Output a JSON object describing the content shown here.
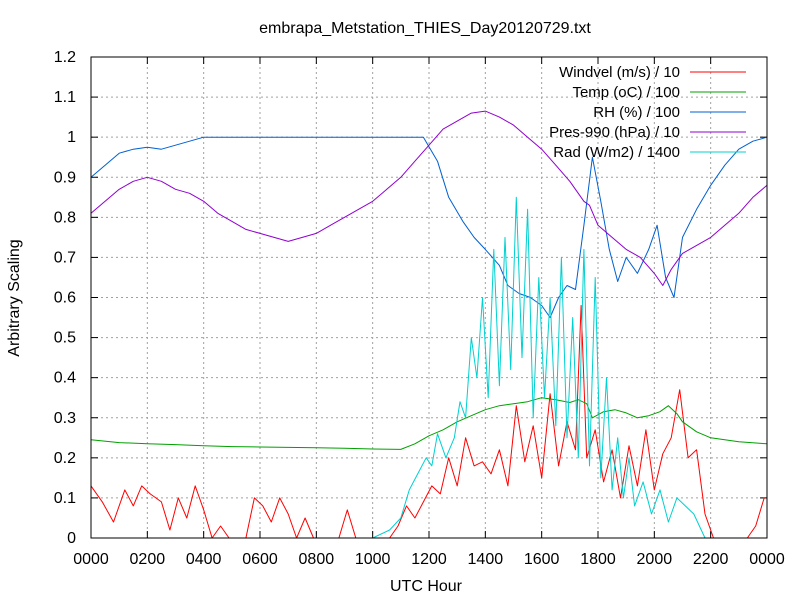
{
  "chart_data": {
    "type": "line",
    "title": "embrapa_Metstation_THIES_Day20120729.txt",
    "xlabel": "UTC Hour",
    "ylabel": "Arbitrary Scaling",
    "xlim": [
      0,
      24
    ],
    "ylim": [
      0,
      1.2
    ],
    "x_ticks": [
      {
        "value": 0,
        "label": "0000"
      },
      {
        "value": 2,
        "label": "0200"
      },
      {
        "value": 4,
        "label": "0400"
      },
      {
        "value": 6,
        "label": "0600"
      },
      {
        "value": 8,
        "label": "0800"
      },
      {
        "value": 10,
        "label": "1000"
      },
      {
        "value": 12,
        "label": "1200"
      },
      {
        "value": 14,
        "label": "1400"
      },
      {
        "value": 16,
        "label": "1600"
      },
      {
        "value": 18,
        "label": "1800"
      },
      {
        "value": 20,
        "label": "2000"
      },
      {
        "value": 22,
        "label": "2200"
      },
      {
        "value": 24,
        "label": "0000"
      }
    ],
    "y_ticks": [
      {
        "value": 0,
        "label": "0"
      },
      {
        "value": 0.1,
        "label": "0.1"
      },
      {
        "value": 0.2,
        "label": "0.2"
      },
      {
        "value": 0.3,
        "label": "0.3"
      },
      {
        "value": 0.4,
        "label": "0.4"
      },
      {
        "value": 0.5,
        "label": "0.5"
      },
      {
        "value": 0.6,
        "label": "0.6"
      },
      {
        "value": 0.7,
        "label": "0.7"
      },
      {
        "value": 0.8,
        "label": "0.8"
      },
      {
        "value": 0.9,
        "label": "0.9"
      },
      {
        "value": 1,
        "label": "1"
      },
      {
        "value": 1.1,
        "label": "1.1"
      },
      {
        "value": 1.2,
        "label": "1.2"
      }
    ],
    "grid": true,
    "legend_position": "top-right",
    "series": [
      {
        "name": "Windvel (m/s) / 10",
        "color": "#ff0000",
        "x": [
          0,
          0.4,
          0.8,
          1.2,
          1.5,
          1.8,
          2.1,
          2.5,
          2.8,
          3.1,
          3.4,
          3.7,
          4.0,
          4.3,
          4.6,
          4.9,
          5.2,
          5.5,
          5.8,
          6.1,
          6.4,
          6.7,
          7.0,
          7.3,
          7.6,
          7.9,
          8.2,
          8.5,
          8.8,
          9.1,
          9.4,
          9.7,
          10.0,
          10.3,
          10.6,
          10.9,
          11.2,
          11.5,
          11.8,
          12.1,
          12.4,
          12.7,
          13.0,
          13.3,
          13.6,
          13.9,
          14.2,
          14.5,
          14.8,
          15.1,
          15.4,
          15.7,
          16.0,
          16.3,
          16.6,
          16.9,
          17.2,
          17.4,
          17.6,
          17.9,
          18.2,
          18.5,
          18.8,
          19.1,
          19.4,
          19.7,
          20.0,
          20.3,
          20.6,
          20.9,
          21.2,
          21.5,
          21.8,
          22.1,
          22.4,
          22.7,
          23.0,
          23.3,
          23.6,
          23.9
        ],
        "y": [
          0.13,
          0.09,
          0.04,
          0.12,
          0.08,
          0.13,
          0.11,
          0.09,
          0.02,
          0.1,
          0.05,
          0.13,
          0.07,
          0.0,
          0.03,
          0.0,
          0.0,
          0.0,
          0.1,
          0.08,
          0.04,
          0.1,
          0.06,
          0.0,
          0.05,
          0.0,
          0.0,
          0.0,
          0.0,
          0.07,
          0.0,
          0.0,
          0.0,
          0.0,
          0.0,
          0.03,
          0.08,
          0.05,
          0.09,
          0.13,
          0.11,
          0.2,
          0.13,
          0.25,
          0.18,
          0.19,
          0.16,
          0.22,
          0.13,
          0.33,
          0.19,
          0.28,
          0.15,
          0.36,
          0.18,
          0.29,
          0.22,
          0.58,
          0.2,
          0.27,
          0.14,
          0.22,
          0.1,
          0.23,
          0.13,
          0.27,
          0.12,
          0.21,
          0.25,
          0.37,
          0.2,
          0.22,
          0.06,
          0.0,
          0.0,
          0.0,
          0.0,
          0.0,
          0.03,
          0.1
        ]
      },
      {
        "name": "Temp (oC) / 100",
        "color": "#00a000",
        "x": [
          0,
          1,
          2,
          3,
          4,
          5,
          6,
          7,
          8,
          9,
          10,
          11,
          11.5,
          12,
          12.5,
          13,
          13.5,
          14,
          14.5,
          15,
          15.5,
          16,
          16.5,
          17,
          17.3,
          17.6,
          17.8,
          18.2,
          18.6,
          19,
          19.4,
          19.8,
          20.2,
          20.5,
          20.8,
          21,
          21.5,
          22,
          23,
          24
        ],
        "y": [
          0.245,
          0.238,
          0.235,
          0.233,
          0.23,
          0.228,
          0.227,
          0.226,
          0.225,
          0.224,
          0.222,
          0.221,
          0.235,
          0.255,
          0.27,
          0.29,
          0.305,
          0.32,
          0.33,
          0.335,
          0.34,
          0.35,
          0.345,
          0.338,
          0.345,
          0.335,
          0.3,
          0.315,
          0.32,
          0.312,
          0.3,
          0.305,
          0.315,
          0.33,
          0.31,
          0.29,
          0.265,
          0.25,
          0.24,
          0.235
        ]
      },
      {
        "name": "RH (%) / 100",
        "color": "#0060d0",
        "x": [
          0,
          0.5,
          1,
          1.5,
          2,
          2.5,
          3,
          3.5,
          4,
          5,
          6,
          7,
          8,
          9,
          10,
          11,
          11.8,
          12.3,
          12.7,
          13.2,
          13.6,
          14,
          14.5,
          14.8,
          15.2,
          15.6,
          16,
          16.3,
          16.6,
          16.9,
          17.2,
          17.5,
          17.8,
          18.1,
          18.4,
          18.7,
          19,
          19.4,
          19.8,
          20.1,
          20.4,
          20.7,
          21,
          21.5,
          22,
          22.5,
          23,
          23.5,
          24
        ],
        "y": [
          0.9,
          0.93,
          0.96,
          0.97,
          0.975,
          0.97,
          0.98,
          0.99,
          1.0,
          1.0,
          1.0,
          1.0,
          1.0,
          1.0,
          1.0,
          1.0,
          1.0,
          0.94,
          0.85,
          0.79,
          0.75,
          0.72,
          0.68,
          0.63,
          0.61,
          0.6,
          0.58,
          0.55,
          0.6,
          0.63,
          0.62,
          0.78,
          0.95,
          0.84,
          0.72,
          0.64,
          0.7,
          0.66,
          0.72,
          0.78,
          0.65,
          0.6,
          0.75,
          0.82,
          0.88,
          0.93,
          0.97,
          0.99,
          1.0
        ]
      },
      {
        "name": "Pres-990 (hPa) / 10",
        "color": "#9000d0",
        "x": [
          0,
          0.5,
          1,
          1.5,
          2,
          2.5,
          3,
          3.5,
          4,
          4.5,
          5,
          5.5,
          6,
          6.5,
          7,
          7.5,
          8,
          8.5,
          9,
          9.5,
          10,
          10.5,
          11,
          11.5,
          12,
          12.5,
          13,
          13.5,
          14,
          14.5,
          15,
          15.5,
          16,
          16.5,
          17,
          17.5,
          17.7,
          18,
          18.5,
          19,
          19.5,
          20,
          20.3,
          20.6,
          21,
          21.5,
          22,
          22.5,
          23,
          23.5,
          24
        ],
        "y": [
          0.81,
          0.84,
          0.87,
          0.89,
          0.9,
          0.89,
          0.87,
          0.86,
          0.84,
          0.81,
          0.79,
          0.77,
          0.76,
          0.75,
          0.74,
          0.75,
          0.76,
          0.78,
          0.8,
          0.82,
          0.84,
          0.87,
          0.9,
          0.94,
          0.98,
          1.02,
          1.04,
          1.06,
          1.065,
          1.05,
          1.03,
          1.0,
          0.97,
          0.93,
          0.89,
          0.84,
          0.83,
          0.78,
          0.75,
          0.72,
          0.7,
          0.66,
          0.63,
          0.67,
          0.71,
          0.73,
          0.75,
          0.78,
          0.81,
          0.85,
          0.88
        ]
      },
      {
        "name": "Rad (W/m2) / 1400",
        "color": "#00d0d0",
        "x": [
          10,
          10.6,
          11.0,
          11.3,
          11.6,
          11.9,
          12.1,
          12.3,
          12.6,
          12.9,
          13.1,
          13.3,
          13.5,
          13.7,
          13.9,
          14.1,
          14.3,
          14.5,
          14.7,
          14.9,
          15.1,
          15.3,
          15.5,
          15.7,
          15.9,
          16.1,
          16.3,
          16.5,
          16.7,
          16.9,
          17.1,
          17.3,
          17.5,
          17.7,
          17.9,
          18.1,
          18.3,
          18.5,
          18.7,
          18.9,
          19.1,
          19.3,
          19.6,
          19.9,
          20.2,
          20.5,
          20.8,
          21.1,
          21.4,
          21.8
        ],
        "y": [
          0.0,
          0.02,
          0.05,
          0.12,
          0.16,
          0.2,
          0.18,
          0.26,
          0.2,
          0.25,
          0.34,
          0.3,
          0.5,
          0.4,
          0.6,
          0.35,
          0.72,
          0.38,
          0.75,
          0.42,
          0.85,
          0.45,
          0.82,
          0.3,
          0.65,
          0.35,
          0.6,
          0.28,
          0.7,
          0.25,
          0.55,
          0.2,
          0.72,
          0.18,
          0.65,
          0.15,
          0.4,
          0.12,
          0.25,
          0.1,
          0.2,
          0.08,
          0.14,
          0.06,
          0.12,
          0.04,
          0.1,
          0.08,
          0.06,
          0.0
        ]
      }
    ]
  }
}
